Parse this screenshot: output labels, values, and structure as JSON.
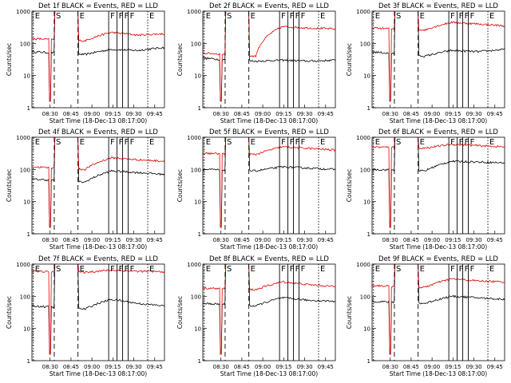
{
  "chart_data": [
    {
      "type": "line",
      "title": "Det 1f BLACK = Events, RED = LLD",
      "xlabel": "Start Time (18-Dec-13 08:17:00)",
      "ylabel": "Counts/sec",
      "yscale": "log",
      "ylim": [
        1,
        1000
      ],
      "y_ticks": [
        "1",
        "10",
        "100",
        "1000"
      ],
      "x_ticks": [
        "08:30",
        "08:45",
        "09:00",
        "09:15",
        "09:30",
        "09:45"
      ],
      "markers": [
        {
          "label": "E",
          "style": "dotted",
          "time": "08:18"
        },
        {
          "label": "S",
          "style": "dashed",
          "time": "08:33"
        },
        {
          "label": "E",
          "style": "dashed",
          "time": "08:50"
        },
        {
          "label": "F",
          "style": "solid",
          "time": "09:12"
        },
        {
          "label": "F",
          "style": "solid",
          "time": "09:18"
        },
        {
          "label": "F",
          "style": "solid",
          "time": "09:22"
        },
        {
          "label": "F",
          "style": "solid",
          "time": "09:26"
        },
        {
          "label": "E",
          "style": "dotted",
          "time": "09:40"
        }
      ],
      "series": [
        {
          "name": "Events",
          "color": "#000000",
          "level": [
            55,
            50,
            45,
            65,
            60,
            75
          ]
        },
        {
          "name": "LLD",
          "color": "#e00000",
          "level": [
            140,
            130,
            120,
            220,
            180,
            200
          ]
        }
      ]
    },
    {
      "type": "line",
      "title": "Det 2f BLACK = Events, RED = LLD",
      "xlabel": "Start Time (18-Dec-13 08:17:00)",
      "ylabel": "Counts/sec",
      "yscale": "log",
      "ylim": [
        1,
        1000
      ],
      "y_ticks": [
        "1",
        "10",
        "100",
        "1000"
      ],
      "x_ticks": [
        "08:30",
        "08:45",
        "09:00",
        "09:15",
        "09:30",
        "09:45"
      ],
      "markers": [
        {
          "label": "E",
          "style": "dotted",
          "time": "08:18"
        },
        {
          "label": "S",
          "style": "dashed",
          "time": "08:33"
        },
        {
          "label": "E",
          "style": "dashed",
          "time": "08:50"
        },
        {
          "label": "F",
          "style": "solid",
          "time": "09:12"
        },
        {
          "label": "F",
          "style": "solid",
          "time": "09:18"
        },
        {
          "label": "F",
          "style": "solid",
          "time": "09:22"
        },
        {
          "label": "F",
          "style": "solid",
          "time": "09:26"
        },
        {
          "label": "E",
          "style": "dotted",
          "time": "09:40"
        }
      ],
      "series": [
        {
          "name": "Events",
          "color": "#000000",
          "level": [
            35,
            30,
            28,
            30,
            28,
            30
          ]
        },
        {
          "name": "LLD",
          "color": "#e00000",
          "level": [
            50,
            45,
            40,
            330,
            300,
            280
          ]
        }
      ]
    },
    {
      "type": "line",
      "title": "Det 3f BLACK = Events, RED = LLD",
      "xlabel": "Start Time (18-Dec-13 08:17:00)",
      "ylabel": "Counts/sec",
      "yscale": "log",
      "ylim": [
        1,
        1000
      ],
      "y_ticks": [
        "1",
        "10",
        "100",
        "1000"
      ],
      "x_ticks": [
        "08:30",
        "08:45",
        "09:00",
        "09:15",
        "09:30",
        "09:45"
      ],
      "markers": [
        {
          "label": "E",
          "style": "dotted",
          "time": "08:18"
        },
        {
          "label": "S",
          "style": "dashed",
          "time": "08:33"
        },
        {
          "label": "E",
          "style": "dashed",
          "time": "08:50"
        },
        {
          "label": "F",
          "style": "solid",
          "time": "09:12"
        },
        {
          "label": "F",
          "style": "solid",
          "time": "09:18"
        },
        {
          "label": "F",
          "style": "solid",
          "time": "09:22"
        },
        {
          "label": "F",
          "style": "solid",
          "time": "09:26"
        },
        {
          "label": "E",
          "style": "dotted",
          "time": "09:40"
        }
      ],
      "series": [
        {
          "name": "Events",
          "color": "#000000",
          "level": [
            55,
            45,
            40,
            60,
            55,
            65
          ]
        },
        {
          "name": "LLD",
          "color": "#e00000",
          "level": [
            300,
            280,
            260,
            450,
            400,
            350
          ]
        }
      ]
    },
    {
      "type": "line",
      "title": "Det 4f BLACK = Events, RED = LLD",
      "xlabel": "Start Time (18-Dec-13 08:17:00)",
      "ylabel": "Counts/sec",
      "yscale": "log",
      "ylim": [
        1,
        1000
      ],
      "y_ticks": [
        "1",
        "10",
        "100",
        "1000"
      ],
      "x_ticks": [
        "08:30",
        "08:45",
        "09:00",
        "09:15",
        "09:30",
        "09:45"
      ],
      "markers": [
        {
          "label": "E",
          "style": "dotted",
          "time": "08:18"
        },
        {
          "label": "S",
          "style": "dashed",
          "time": "08:33"
        },
        {
          "label": "E",
          "style": "dashed",
          "time": "08:50"
        },
        {
          "label": "F",
          "style": "solid",
          "time": "09:12"
        },
        {
          "label": "F",
          "style": "solid",
          "time": "09:18"
        },
        {
          "label": "F",
          "style": "solid",
          "time": "09:22"
        },
        {
          "label": "F",
          "style": "solid",
          "time": "09:26"
        },
        {
          "label": "E",
          "style": "dotted",
          "time": "09:40"
        }
      ],
      "series": [
        {
          "name": "Events",
          "color": "#000000",
          "level": [
            50,
            45,
            40,
            90,
            80,
            70
          ]
        },
        {
          "name": "LLD",
          "color": "#e00000",
          "level": [
            120,
            110,
            100,
            230,
            200,
            180
          ]
        }
      ]
    },
    {
      "type": "line",
      "title": "Det 5f BLACK = Events, RED = LLD",
      "xlabel": "Start Time (18-Dec-13 08:17:00)",
      "ylabel": "Counts/sec",
      "yscale": "log",
      "ylim": [
        1,
        1000
      ],
      "y_ticks": [
        "1",
        "10",
        "100",
        "1000"
      ],
      "x_ticks": [
        "08:30",
        "08:45",
        "09:00",
        "09:15",
        "09:30",
        "09:45"
      ],
      "markers": [
        {
          "label": "E",
          "style": "dotted",
          "time": "08:18"
        },
        {
          "label": "S",
          "style": "dashed",
          "time": "08:33"
        },
        {
          "label": "E",
          "style": "dashed",
          "time": "08:50"
        },
        {
          "label": "F",
          "style": "solid",
          "time": "09:12"
        },
        {
          "label": "F",
          "style": "solid",
          "time": "09:18"
        },
        {
          "label": "F",
          "style": "solid",
          "time": "09:22"
        },
        {
          "label": "F",
          "style": "solid",
          "time": "09:26"
        },
        {
          "label": "E",
          "style": "dotted",
          "time": "09:40"
        }
      ],
      "series": [
        {
          "name": "Events",
          "color": "#000000",
          "level": [
            100,
            95,
            90,
            120,
            110,
            100
          ]
        },
        {
          "name": "LLD",
          "color": "#e00000",
          "level": [
            320,
            300,
            290,
            500,
            450,
            400
          ]
        }
      ]
    },
    {
      "type": "line",
      "title": "Det 6f BLACK = Events, RED = LLD",
      "xlabel": "Start Time (18-Dec-13 08:17:00)",
      "ylabel": "Counts/sec",
      "yscale": "log",
      "ylim": [
        1,
        1000
      ],
      "y_ticks": [
        "1",
        "10",
        "100",
        "1000"
      ],
      "x_ticks": [
        "08:30",
        "08:45",
        "09:00",
        "09:15",
        "09:30",
        "09:45"
      ],
      "markers": [
        {
          "label": "E",
          "style": "dotted",
          "time": "08:18"
        },
        {
          "label": "S",
          "style": "dashed",
          "time": "08:33"
        },
        {
          "label": "E",
          "style": "dashed",
          "time": "08:50"
        },
        {
          "label": "F",
          "style": "solid",
          "time": "09:12"
        },
        {
          "label": "F",
          "style": "solid",
          "time": "09:18"
        },
        {
          "label": "F",
          "style": "solid",
          "time": "09:22"
        },
        {
          "label": "F",
          "style": "solid",
          "time": "09:26"
        },
        {
          "label": "E",
          "style": "dotted",
          "time": "09:40"
        }
      ],
      "series": [
        {
          "name": "Events",
          "color": "#000000",
          "level": [
            100,
            95,
            90,
            180,
            170,
            160
          ]
        },
        {
          "name": "LLD",
          "color": "#e00000",
          "level": [
            500,
            480,
            460,
            600,
            550,
            500
          ]
        }
      ]
    },
    {
      "type": "line",
      "title": "Det 7f BLACK = Events, RED = LLD",
      "xlabel": "Start Time (18-Dec-13 08:17:00)",
      "ylabel": "Counts/sec",
      "yscale": "log",
      "ylim": [
        1,
        1000
      ],
      "y_ticks": [
        "1",
        "10",
        "100",
        "1000"
      ],
      "x_ticks": [
        "08:30",
        "08:45",
        "09:00",
        "09:15",
        "09:30",
        "09:45"
      ],
      "markers": [
        {
          "label": "E",
          "style": "dotted",
          "time": "08:18"
        },
        {
          "label": "S",
          "style": "dashed",
          "time": "08:33"
        },
        {
          "label": "E",
          "style": "dashed",
          "time": "08:50"
        },
        {
          "label": "F",
          "style": "solid",
          "time": "09:12"
        },
        {
          "label": "F",
          "style": "solid",
          "time": "09:18"
        },
        {
          "label": "F",
          "style": "solid",
          "time": "09:22"
        },
        {
          "label": "F",
          "style": "solid",
          "time": "09:26"
        },
        {
          "label": "E",
          "style": "dotted",
          "time": "09:40"
        }
      ],
      "series": [
        {
          "name": "Events",
          "color": "#000000",
          "level": [
            50,
            45,
            40,
            80,
            60,
            50
          ]
        },
        {
          "name": "LLD",
          "color": "#e00000",
          "level": [
            600,
            580,
            560,
            650,
            600,
            580
          ]
        }
      ]
    },
    {
      "type": "line",
      "title": "Det 8f BLACK = Events, RED = LLD",
      "xlabel": "Start Time (18-Dec-13 08:17:00)",
      "ylabel": "Counts/sec",
      "yscale": "log",
      "ylim": [
        1,
        1000
      ],
      "y_ticks": [
        "1",
        "10",
        "100",
        "1000"
      ],
      "x_ticks": [
        "08:30",
        "08:45",
        "09:00",
        "09:15",
        "09:30",
        "09:45"
      ],
      "markers": [
        {
          "label": "E",
          "style": "dotted",
          "time": "08:18"
        },
        {
          "label": "S",
          "style": "dashed",
          "time": "08:33"
        },
        {
          "label": "E",
          "style": "dashed",
          "time": "08:50"
        },
        {
          "label": "F",
          "style": "solid",
          "time": "09:12"
        },
        {
          "label": "F",
          "style": "solid",
          "time": "09:18"
        },
        {
          "label": "F",
          "style": "solid",
          "time": "09:22"
        },
        {
          "label": "F",
          "style": "solid",
          "time": "09:26"
        },
        {
          "label": "E",
          "style": "dotted",
          "time": "09:40"
        }
      ],
      "series": [
        {
          "name": "Events",
          "color": "#000000",
          "level": [
            60,
            55,
            50,
            90,
            75,
            70
          ]
        },
        {
          "name": "LLD",
          "color": "#e00000",
          "level": [
            180,
            170,
            160,
            280,
            230,
            200
          ]
        }
      ]
    },
    {
      "type": "line",
      "title": "Det 9f BLACK = Events, RED = LLD",
      "xlabel": "Start Time (18-Dec-13 08:17:00)",
      "ylabel": "Counts/sec",
      "yscale": "log",
      "ylim": [
        1,
        1000
      ],
      "y_ticks": [
        "1",
        "10",
        "100",
        "1000"
      ],
      "x_ticks": [
        "08:30",
        "08:45",
        "09:00",
        "09:15",
        "09:30",
        "09:45"
      ],
      "markers": [
        {
          "label": "E",
          "style": "dotted",
          "time": "08:18"
        },
        {
          "label": "S",
          "style": "dashed",
          "time": "08:33"
        },
        {
          "label": "E",
          "style": "dashed",
          "time": "08:50"
        },
        {
          "label": "F",
          "style": "solid",
          "time": "09:12"
        },
        {
          "label": "F",
          "style": "solid",
          "time": "09:18"
        },
        {
          "label": "F",
          "style": "solid",
          "time": "09:22"
        },
        {
          "label": "F",
          "style": "solid",
          "time": "09:26"
        },
        {
          "label": "E",
          "style": "dotted",
          "time": "09:40"
        }
      ],
      "series": [
        {
          "name": "Events",
          "color": "#000000",
          "level": [
            70,
            65,
            60,
            100,
            90,
            80
          ]
        },
        {
          "name": "LLD",
          "color": "#e00000",
          "level": [
            220,
            200,
            190,
            350,
            300,
            280
          ]
        }
      ]
    }
  ]
}
